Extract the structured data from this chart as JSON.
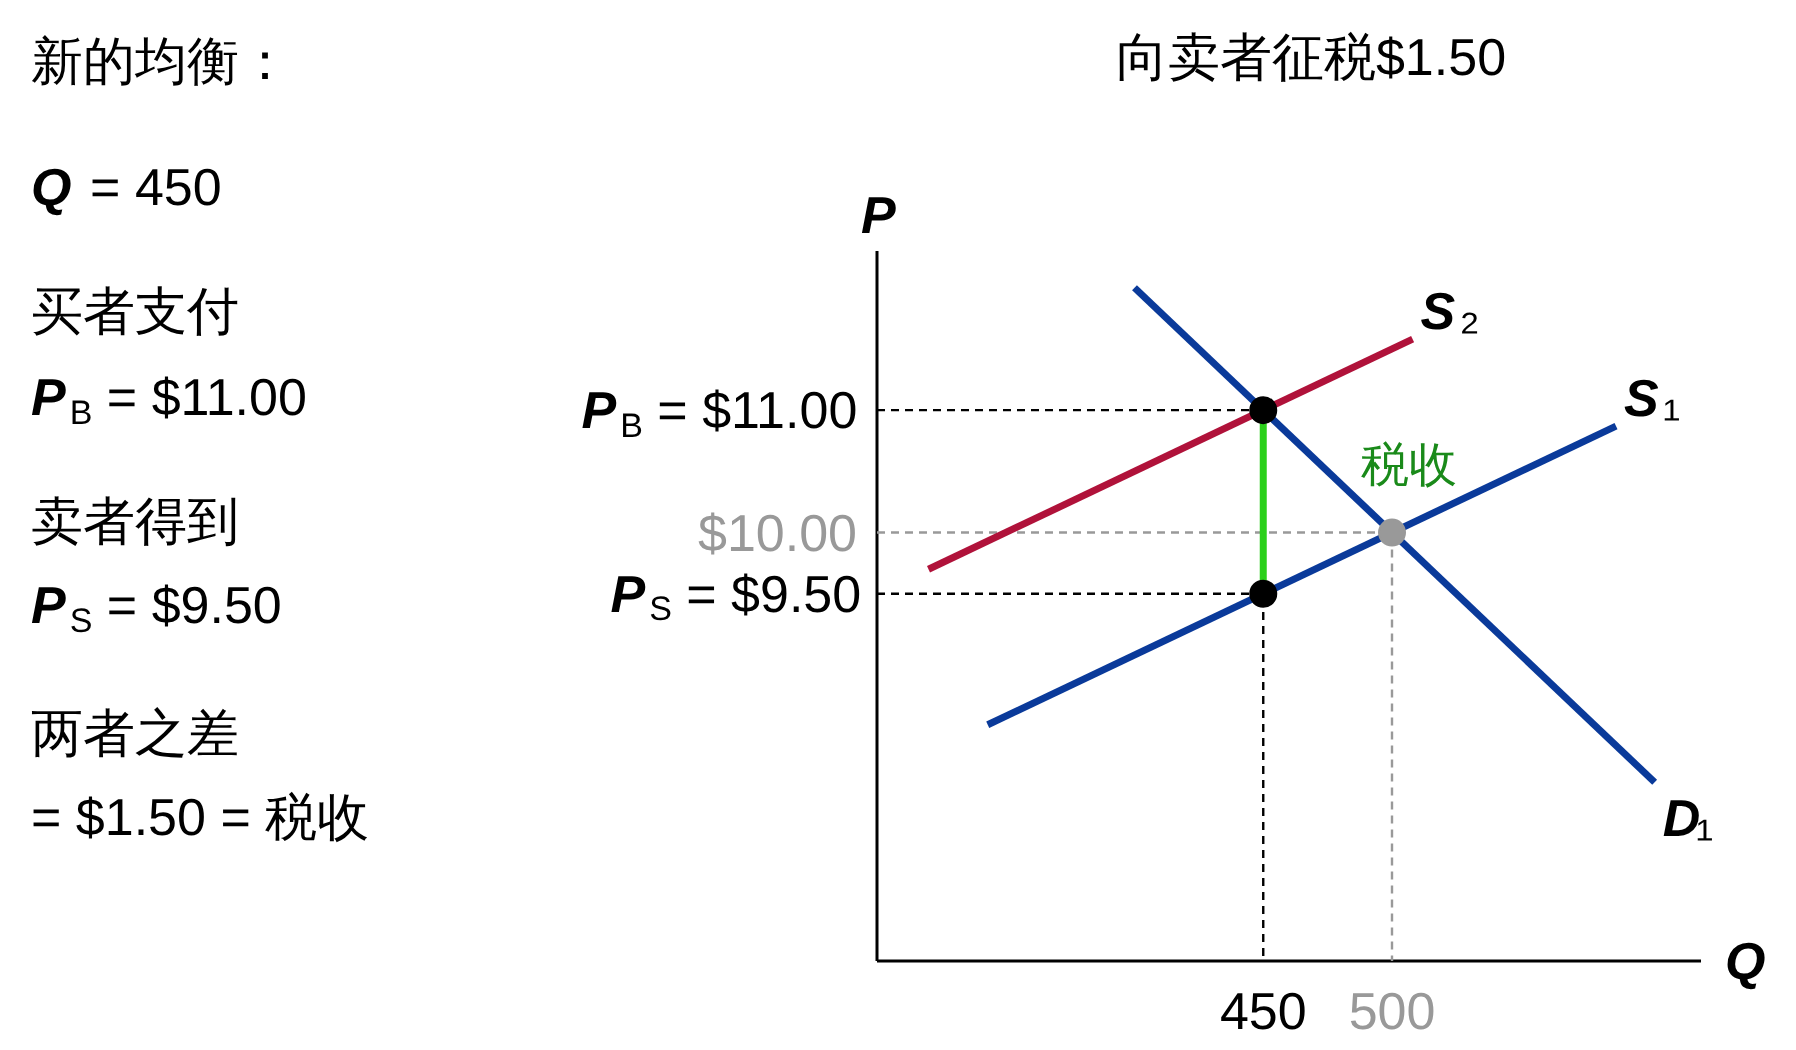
{
  "chart_data": {
    "type": "line",
    "title": "向卖者征税$1.50",
    "xlabel": "Q",
    "ylabel": "P",
    "xlim": [
      300,
      620
    ],
    "ylim": [
      6.5,
      12.3
    ],
    "xticks": [
      450,
      500
    ],
    "yticks": [
      {
        "value": 9.5,
        "label": "P$_{S}$ = $9.50"
      },
      {
        "value": 10,
        "label": "$10.00"
      },
      {
        "value": 11,
        "label": "P$_{B}$ = $11.00"
      }
    ],
    "series": [
      {
        "color": "#000000",
        "line_style": "dashed",
        "x": [
          300,
          450,
          450
        ],
        "values": [
          11,
          11,
          6.5
        ]
      },
      {
        "color": "#000000",
        "line_style": "dashed",
        "x": [
          300,
          450
        ],
        "values": [
          9.5,
          9.5
        ]
      },
      {
        "color": "#999999",
        "line_style": "dashed",
        "x": [
          300,
          500,
          500
        ],
        "values": [
          10,
          10,
          6.5
        ]
      },
      {
        "name": "S₂",
        "color": "#b0123a",
        "x": [
          320,
          508
        ],
        "values": [
          9.7,
          11.58
        ]
      },
      {
        "name": "S₁",
        "color": "#0a3a9a",
        "x": [
          343,
          587
        ],
        "values": [
          8.43,
          10.87
        ]
      },
      {
        "name": "D₁",
        "color": "#0a3a9a",
        "x": [
          400,
          602
        ],
        "values": [
          12.0,
          7.96
        ]
      },
      {
        "color": "#2bd01a",
        "x": [
          450,
          450
        ],
        "values": [
          9.5,
          11
        ]
      },
      {
        "type": "scatter",
        "marker": "circle",
        "x": [
          450,
          500,
          450
        ],
        "values": [
          11,
          10,
          9.5
        ],
        "colors": [
          "#000000",
          "#999999",
          "#000000"
        ]
      }
    ],
    "annotations": [
      "新的均衡：",
      "Q = 450",
      "买者支付",
      "P$_{B}$ = $11.00",
      "卖者得到",
      "P$_{S}$ = $9.50",
      "两者之差",
      "= $1.50 = 税收",
      {
        "text": "税收",
        "x": 450,
        "y": 10.25
      }
    ]
  }
}
